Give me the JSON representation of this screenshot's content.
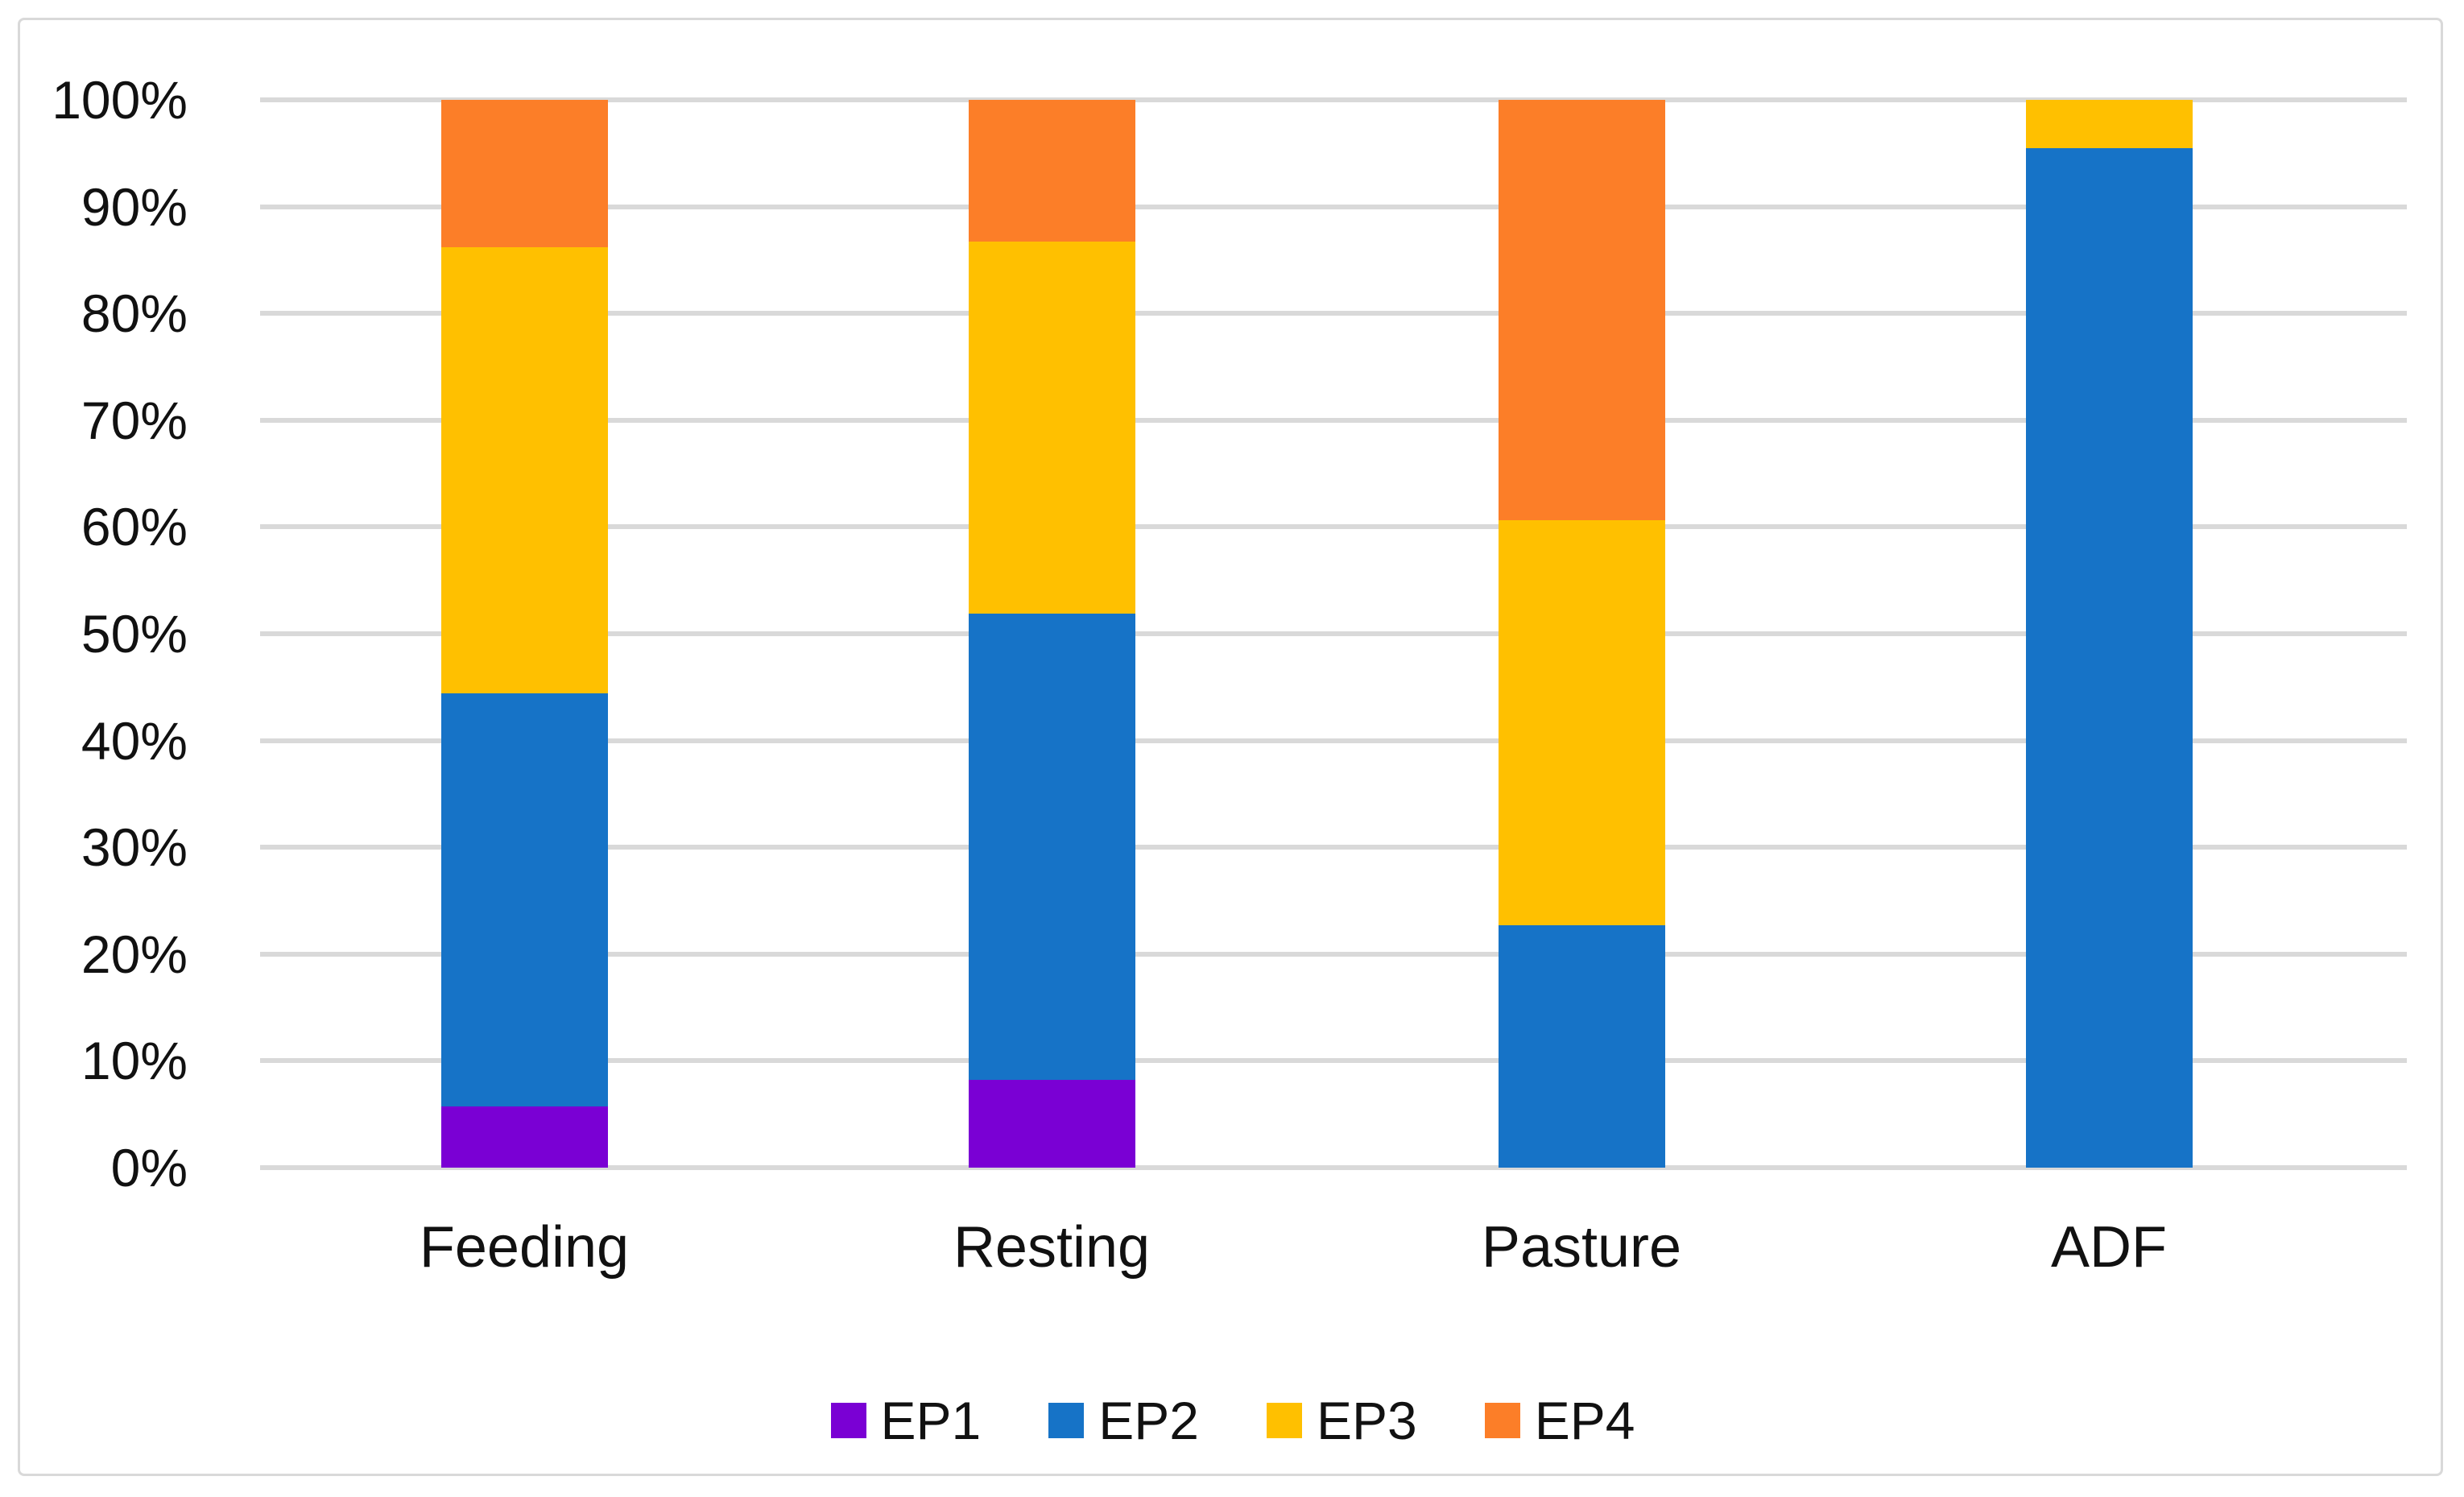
{
  "chart": {
    "background_color": "#FFFFFF",
    "frame_border_color": "#D9D9D9",
    "gridline_color": "#D9D9D9",
    "text_color": "#111111"
  },
  "chart_data": {
    "type": "bar",
    "subtype": "stacked-100-percent",
    "title": "",
    "xlabel": "",
    "ylabel": "",
    "categories": [
      "Feeding",
      "Resting",
      "Pasture",
      "ADF"
    ],
    "series": [
      {
        "name": "EP1",
        "color": "#7A00D4",
        "values": [
          5.7,
          8.2,
          0,
          0
        ]
      },
      {
        "name": "EP2",
        "color": "#1673C7",
        "values": [
          38.7,
          43.7,
          22.7,
          95.5
        ]
      },
      {
        "name": "EP3",
        "color": "#FFC000",
        "values": [
          41.8,
          34.8,
          37.9,
          4.5
        ]
      },
      {
        "name": "EP4",
        "color": "#FC7E28",
        "values": [
          13.8,
          13.3,
          39.4,
          0
        ]
      }
    ],
    "y_ticks": [
      "0%",
      "10%",
      "20%",
      "30%",
      "40%",
      "50%",
      "60%",
      "70%",
      "80%",
      "90%",
      "100%"
    ],
    "ylim": [
      0,
      100
    ],
    "grid": true,
    "legend_position": "bottom",
    "legend_entries": [
      "EP1",
      "EP2",
      "EP3",
      "EP4"
    ]
  }
}
